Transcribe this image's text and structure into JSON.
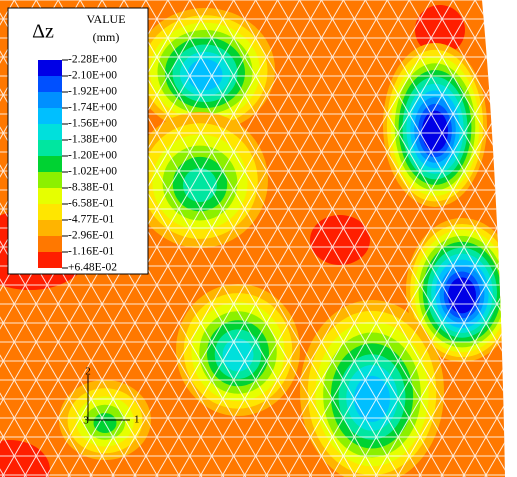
{
  "legend": {
    "symbol": "Δz",
    "title": "VALUE",
    "unit": "(mm)",
    "labels": [
      "-2.28E+00",
      "-2.10E+00",
      "-1.92E+00",
      "-1.74E+00",
      "-1.56E+00",
      "-1.38E+00",
      "-1.20E+00",
      "-1.02E+00",
      "-8.38E-01",
      "-6.58E-01",
      "-4.77E-01",
      "-2.96E-01",
      "-1.16E-01",
      "+6.48E-02"
    ],
    "colors": [
      "#0000e6",
      "#0050ff",
      "#0090ff",
      "#00bfff",
      "#00e0dc",
      "#00e6a0",
      "#00d232",
      "#8cf000",
      "#e6ff00",
      "#ffe600",
      "#ffb400",
      "#ff7800",
      "#ff1e00"
    ]
  },
  "triad": {
    "labels": [
      "2",
      "3",
      "1"
    ]
  }
}
